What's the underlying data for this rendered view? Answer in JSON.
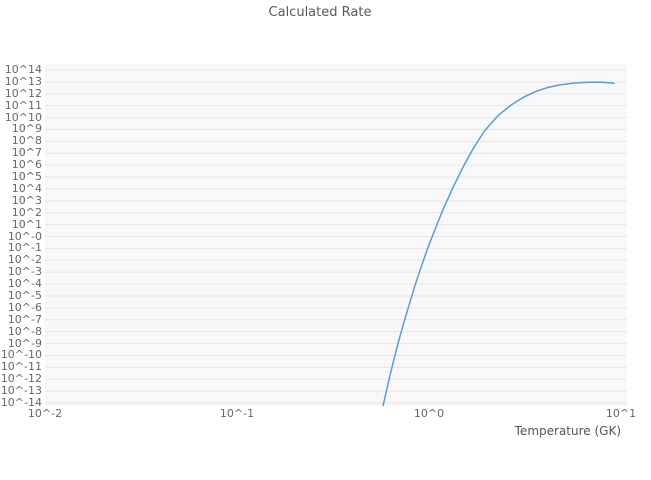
{
  "colors": {
    "line": "#5b9bd5",
    "grid": "#e6e6e6",
    "plot_bg": "#f8f8f8",
    "tick_text": "#666666",
    "title_text": "#5a5a5a"
  },
  "chart_data": {
    "type": "line",
    "title": "Calculated Rate",
    "xlabel": "Temperature (GK)",
    "ylabel": "",
    "x_scale": "log",
    "y_scale": "log",
    "xlim_log10": [
      -2,
      1
    ],
    "ylim_log10": [
      -14,
      14
    ],
    "grid": "horizontal",
    "legend": "none",
    "x_tick_labels": [
      "10^-2",
      "10^-1",
      "10^0",
      "10^1"
    ],
    "x_tick_log10": [
      -2,
      -1,
      0,
      1
    ],
    "y_tick_labels": [
      "10^14",
      "10^13",
      "10^12",
      "10^11",
      "10^10",
      "10^9",
      "10^8",
      "10^7",
      "10^6",
      "10^5",
      "10^4",
      "10^3",
      "10^2",
      "10^1",
      "10^-0",
      "10^-1",
      "10^-2",
      "10^-3",
      "10^-4",
      "10^-5",
      "10^-6",
      "10^-7",
      "10^-8",
      "10^-9",
      "10^-10",
      "10^-11",
      "10^-12",
      "10^-13",
      "10^-14"
    ],
    "y_tick_log10": [
      14,
      13,
      12,
      11,
      10,
      9,
      8,
      7,
      6,
      5,
      4,
      3,
      2,
      1,
      0,
      -1,
      -2,
      -3,
      -4,
      -5,
      -6,
      -7,
      -8,
      -9,
      -10,
      -11,
      -12,
      -13,
      -14
    ],
    "series": [
      {
        "name": "calculated-rate",
        "x_GK": [
          0.575,
          0.6,
          0.63,
          0.66,
          0.7,
          0.75,
          0.8,
          0.85,
          0.9,
          0.95,
          1.0,
          1.1,
          1.2,
          1.35,
          1.5,
          1.7,
          1.95,
          2.3,
          2.7,
          3.1,
          3.6,
          4.2,
          4.8,
          5.5,
          6.2,
          7.0,
          7.8,
          8.5,
          9.2
        ],
        "log10_rate": [
          -14.3,
          -13.0,
          -11.5,
          -10.2,
          -8.6,
          -6.9,
          -5.4,
          -4.0,
          -2.8,
          -1.7,
          -0.7,
          1.0,
          2.5,
          4.3,
          5.8,
          7.4,
          8.9,
          10.2,
          11.1,
          11.7,
          12.2,
          12.55,
          12.75,
          12.88,
          12.94,
          12.97,
          12.97,
          12.94,
          12.88
        ]
      }
    ]
  }
}
